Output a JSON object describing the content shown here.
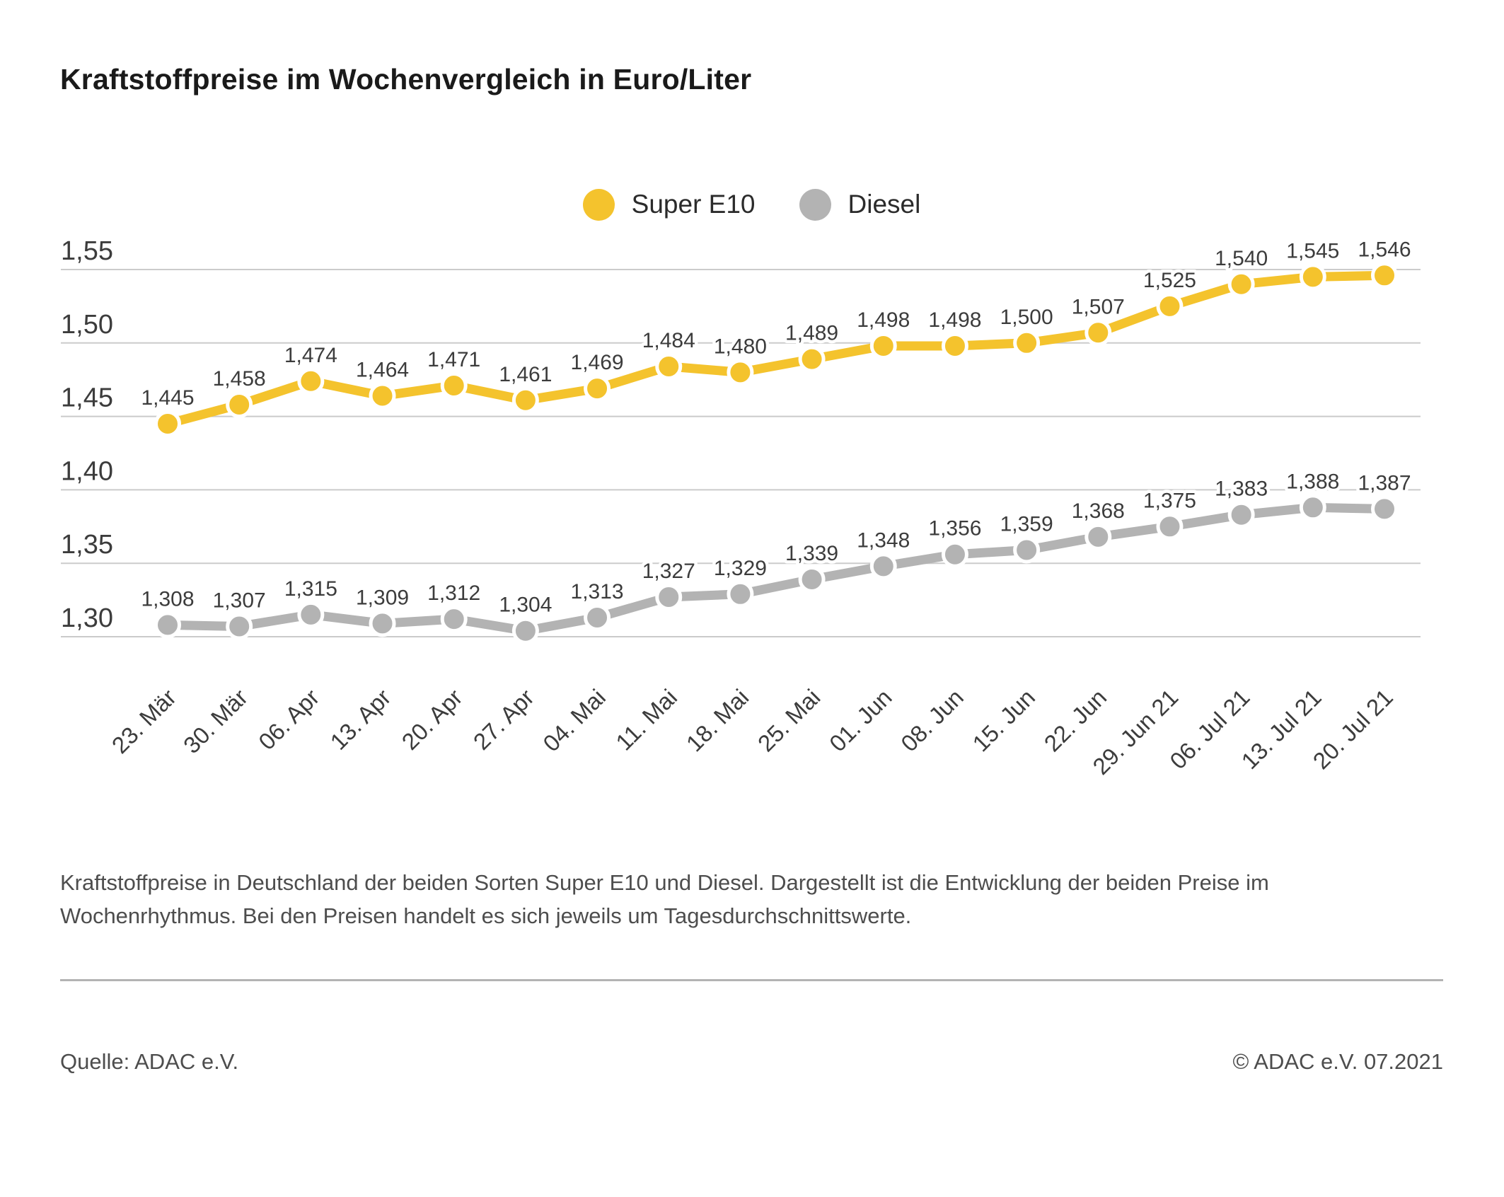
{
  "title": "Kraftstoffpreise im Wochenvergleich in Euro/Liter",
  "legend": [
    {
      "label": "Super E10",
      "color": "#F4C32D"
    },
    {
      "label": "Diesel",
      "color": "#B3B3B3"
    }
  ],
  "chart_data": {
    "type": "line",
    "title": "Kraftstoffpreise im Wochenvergleich in Euro/Liter",
    "categories": [
      "23. Mär",
      "30. Mär",
      "06. Apr",
      "13. Apr",
      "20. Apr",
      "27. Apr",
      "04. Mai",
      "11. Mai",
      "18. Mai",
      "25. Mai",
      "01. Jun",
      "08. Jun",
      "15. Jun",
      "22. Jun",
      "29. Jun 21",
      "06. Jul 21",
      "13. Jul 21",
      "20. Jul 21"
    ],
    "series": [
      {
        "name": "Super E10",
        "color": "#F4C32D",
        "values": [
          1.445,
          1.458,
          1.474,
          1.464,
          1.471,
          1.461,
          1.469,
          1.484,
          1.48,
          1.489,
          1.498,
          1.498,
          1.5,
          1.507,
          1.525,
          1.54,
          1.545,
          1.546
        ],
        "value_labels": [
          "1,445",
          "1,458",
          "1,474",
          "1,464",
          "1,471",
          "1,461",
          "1,469",
          "1,484",
          "1,480",
          "1,489",
          "1,498",
          "1,498",
          "1,500",
          "1,507",
          "1,525",
          "1,540",
          "1,545",
          "1,546"
        ]
      },
      {
        "name": "Diesel",
        "color": "#B3B3B3",
        "values": [
          1.308,
          1.307,
          1.315,
          1.309,
          1.312,
          1.304,
          1.313,
          1.327,
          1.329,
          1.339,
          1.348,
          1.356,
          1.359,
          1.368,
          1.375,
          1.383,
          1.388,
          1.387
        ],
        "value_labels": [
          "1,308",
          "1,307",
          "1,315",
          "1,309",
          "1,312",
          "1,304",
          "1,313",
          "1,327",
          "1,329",
          "1,339",
          "1,348",
          "1,356",
          "1,359",
          "1,368",
          "1,375",
          "1,383",
          "1,388",
          "1,387"
        ]
      }
    ],
    "xlabel": "",
    "ylabel": "Euro/Liter",
    "ylim": [
      1.3,
      1.55
    ],
    "yticks": [
      1.55,
      1.5,
      1.45,
      1.4,
      1.35,
      1.3
    ],
    "ytick_labels": [
      "1,55",
      "1,50",
      "1,45",
      "1,40",
      "1,35",
      "1,30"
    ],
    "grid": true,
    "legend_position": "top-center"
  },
  "description_lines": [
    "Kraftstoffpreise in Deutschland der beiden Sorten Super E10 und Diesel. Dargestellt ist die Entwicklung der beiden Preise im",
    "Wochenrhythmus. Bei den Preisen handelt es sich jeweils um Tagesdurchschnittswerte."
  ],
  "source": "Quelle: ADAC e.V.",
  "copyright": "© ADAC e.V. 07.2021",
  "colors": {
    "background": "#FFFFFF",
    "grid": "#CBCBCB",
    "axis_text": "#3c3c3c",
    "value_label_text": "#3c3c3c",
    "body_text": "#4d4d4d",
    "title_text": "#1a1a1a",
    "divider": "#B3B3B3"
  }
}
